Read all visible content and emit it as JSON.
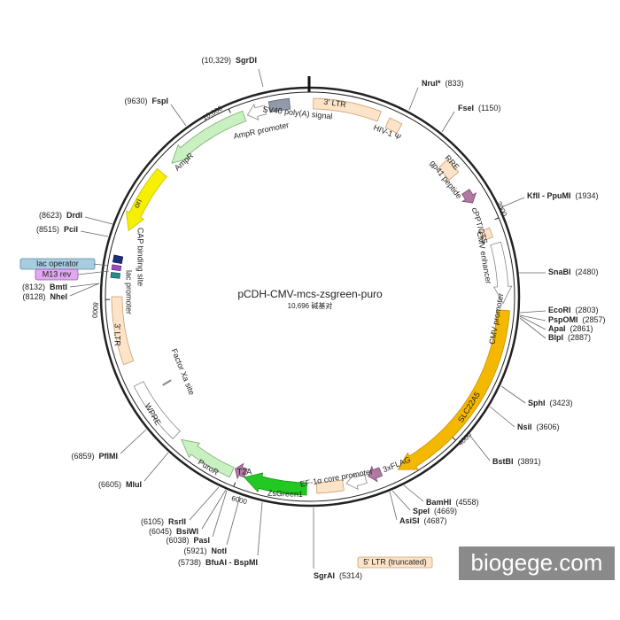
{
  "title": "pCDH-CMV-mcs-zsgreen-puro",
  "size": "10,696 碱基对",
  "sites": [
    {
      "name": "SgrDI",
      "position": "(10,329)"
    },
    {
      "name": "NruI*",
      "position": "(833)"
    },
    {
      "name": "FseI",
      "position": "(1150)"
    },
    {
      "name": "KflI - PpuMI",
      "position": "(1934)"
    },
    {
      "name": "SnaBI",
      "position": "(2480)"
    },
    {
      "name": "EcoRI",
      "position": "(2803)"
    },
    {
      "name": "PspOMI",
      "position": "(2857)"
    },
    {
      "name": "ApaI",
      "position": "(2861)"
    },
    {
      "name": "BlpI",
      "position": "(2887)"
    },
    {
      "name": "SphI",
      "position": "(3423)"
    },
    {
      "name": "NsiI",
      "position": "(3606)"
    },
    {
      "name": "BstBI",
      "position": "(3891)"
    },
    {
      "name": "BamHI",
      "position": "(4558)"
    },
    {
      "name": "SpeI",
      "position": "(4669)"
    },
    {
      "name": "AsiSI",
      "position": "(4687)"
    },
    {
      "name": "SgrAI",
      "position": "(5314)"
    },
    {
      "name": "BfuAI - BspMI",
      "position": "(5738)"
    },
    {
      "name": "NotI",
      "position": "(5921)"
    },
    {
      "name": "PasI",
      "position": "(6038)"
    },
    {
      "name": "BsiWI",
      "position": "(6045)"
    },
    {
      "name": "RsrII",
      "position": "(6105)"
    },
    {
      "name": "MluI",
      "position": "(6605)"
    },
    {
      "name": "PflMI",
      "position": "(6859)"
    },
    {
      "name": "NheI",
      "position": "(8128)"
    },
    {
      "name": "BmtI",
      "position": "(8132)"
    },
    {
      "name": "PciI",
      "position": "(8515)"
    },
    {
      "name": "DrdI",
      "position": "(8623)"
    },
    {
      "name": "FspI",
      "position": "(9630)"
    }
  ],
  "features": [
    {
      "label": "3' LTR"
    },
    {
      "label": "HIV-1 Ψ"
    },
    {
      "label": "RRE"
    },
    {
      "label": "gp41 peptide"
    },
    {
      "label": "cPPT/CTS"
    },
    {
      "label": "CMV enhancer"
    },
    {
      "label": "CMV promoter"
    },
    {
      "label": "SLC22A5"
    },
    {
      "label": "3xFLAG"
    },
    {
      "label": "EF-1α core promoter"
    },
    {
      "label": "5' LTR (truncated)"
    },
    {
      "label": "ZsGreen1"
    },
    {
      "label": "T2A"
    },
    {
      "label": "PuroR"
    },
    {
      "label": "WPRE"
    },
    {
      "label": "Factor Xa site"
    },
    {
      "label": "3' LTR"
    },
    {
      "label": "lac promoter"
    },
    {
      "label": "CAP binding site"
    },
    {
      "label": "lac operator"
    },
    {
      "label": "M13 rev"
    },
    {
      "label": "ori"
    },
    {
      "label": "AmpR"
    },
    {
      "label": "AmpR promoter"
    },
    {
      "label": "SV40 poly(A) signal"
    }
  ],
  "scale_ticks": [
    "10,000",
    "2000",
    "4000",
    "6000",
    "8000"
  ],
  "watermark": "biogege.com"
}
